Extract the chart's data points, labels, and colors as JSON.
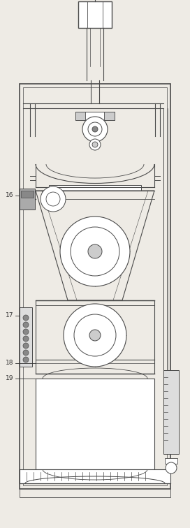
{
  "background_color": "#eeebe5",
  "line_color": "#4a4a4a",
  "label_color": "#333333",
  "label_fontsize": 6.5,
  "figsize": [
    2.72,
    7.56
  ],
  "dpi": 100
}
